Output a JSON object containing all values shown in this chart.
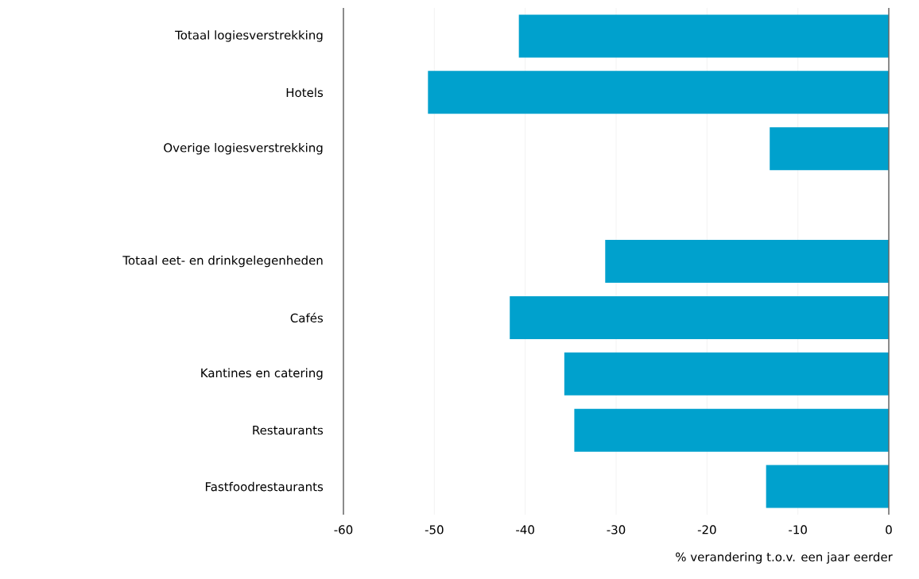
{
  "chart_data": {
    "type": "bar",
    "orientation": "horizontal",
    "categories": [
      "Totaal logiesverstrekking",
      "Hotels",
      "Overige logiesverstrekking",
      null,
      "Totaal eet- en drinkgelegenheden",
      "Cafés",
      "Kantines en catering",
      "Restaurants",
      "Fastfoodrestaurants"
    ],
    "values": [
      -40.7,
      -50.7,
      -13.1,
      null,
      -31.2,
      -41.7,
      -35.7,
      -34.6,
      -13.5
    ],
    "color": "#00a1cd",
    "xlabel": "% verandering t.o.v. een jaar eerder",
    "xlim": [
      -60,
      0
    ],
    "xticks": [
      -60,
      -50,
      -40,
      -30,
      -20,
      -10,
      0
    ],
    "grid": "x"
  }
}
